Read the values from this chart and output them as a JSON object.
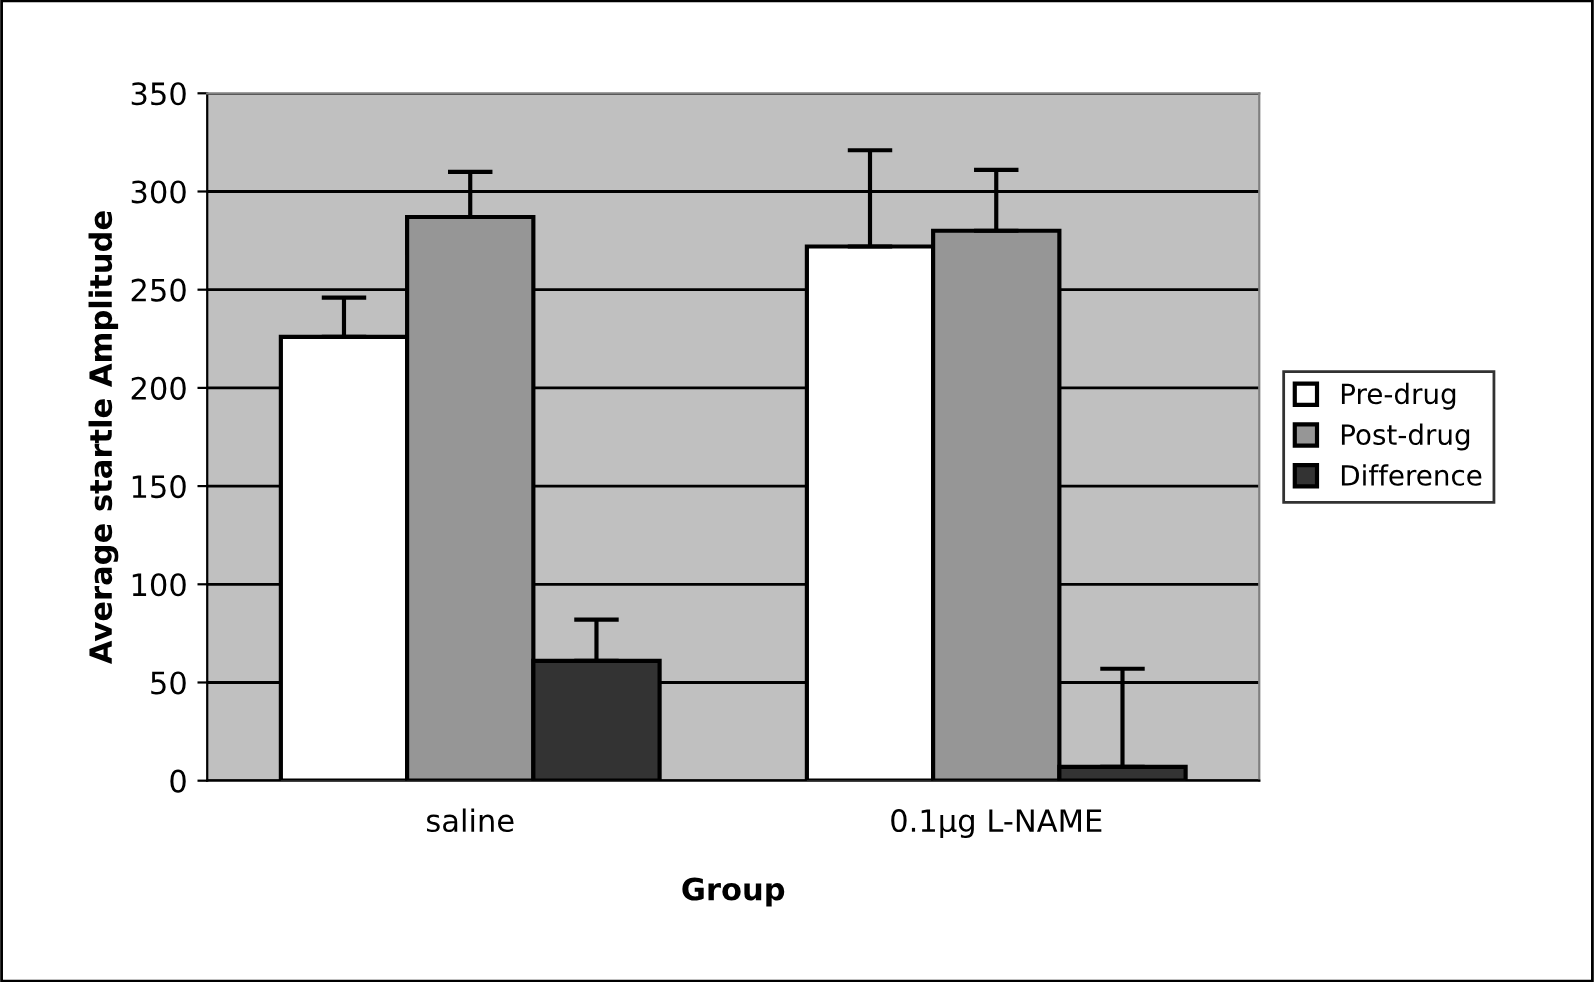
{
  "chart_data": {
    "type": "bar",
    "xlabel": "Group",
    "ylabel": "Average startle Amplitude",
    "categories": [
      "saline",
      "0.1µg L-NAME"
    ],
    "series": [
      {
        "name": "Pre-drug",
        "color": "#ffffff",
        "values": [
          226,
          272
        ],
        "errors": [
          [
            226,
            246
          ],
          [
            272,
            321
          ]
        ]
      },
      {
        "name": "Post-drug",
        "color": "#969696",
        "values": [
          287,
          280
        ],
        "errors": [
          [
            287,
            310
          ],
          [
            280,
            311
          ]
        ]
      },
      {
        "name": "Difference",
        "color": "#333333",
        "values": [
          61,
          7
        ],
        "errors": [
          [
            61,
            82
          ],
          [
            7,
            57
          ]
        ]
      }
    ],
    "ylim": [
      0,
      350
    ],
    "yticks": [
      0,
      50,
      100,
      150,
      200,
      250,
      300,
      350
    ],
    "grid": "y",
    "legend": "right"
  }
}
